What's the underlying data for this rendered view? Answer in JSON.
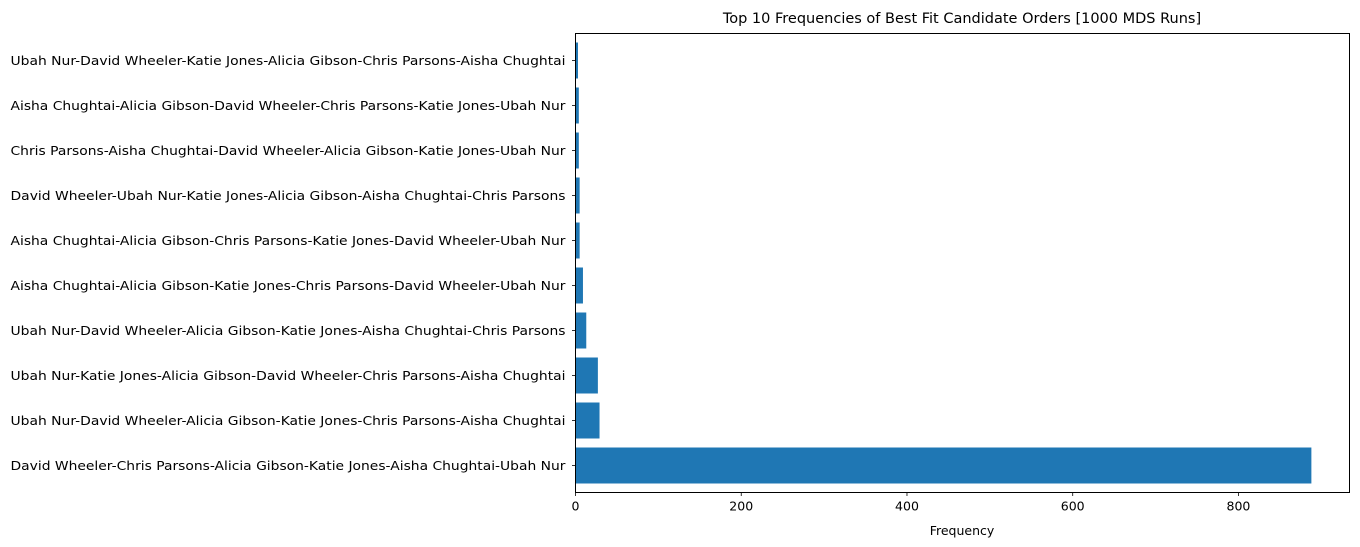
{
  "chart_data": {
    "type": "bar",
    "orientation": "horizontal",
    "title": "Top 10 Frequencies of Best Fit Candidate Orders [1000 MDS Runs]",
    "xlabel": "Frequency",
    "ylabel": "",
    "xlim": [
      0,
      934
    ],
    "x_ticks": [
      0,
      200,
      400,
      600,
      800
    ],
    "bar_color": "#1f77b4",
    "categories": [
      "David Wheeler-Chris Parsons-Alicia Gibson-Katie Jones-Aisha Chughtai-Ubah Nur",
      "Ubah Nur-David Wheeler-Alicia Gibson-Katie Jones-Chris Parsons-Aisha Chughtai",
      "Ubah Nur-Katie Jones-Alicia Gibson-David Wheeler-Chris Parsons-Aisha Chughtai",
      "Ubah Nur-David Wheeler-Alicia Gibson-Katie Jones-Aisha Chughtai-Chris Parsons",
      "Aisha Chughtai-Alicia Gibson-Katie Jones-Chris Parsons-David Wheeler-Ubah Nur",
      "Aisha Chughtai-Alicia Gibson-Chris Parsons-Katie Jones-David Wheeler-Ubah Nur",
      "David Wheeler-Ubah Nur-Katie Jones-Alicia Gibson-Aisha Chughtai-Chris Parsons",
      "Chris Parsons-Aisha Chughtai-David Wheeler-Alicia Gibson-Katie Jones-Ubah Nur",
      "Aisha Chughtai-Alicia Gibson-David Wheeler-Chris Parsons-Katie Jones-Ubah Nur",
      "Ubah Nur-David Wheeler-Katie Jones-Alicia Gibson-Chris Parsons-Aisha Chughtai"
    ],
    "values": [
      888,
      29,
      27,
      13,
      9,
      5,
      5,
      4,
      4,
      3
    ]
  }
}
